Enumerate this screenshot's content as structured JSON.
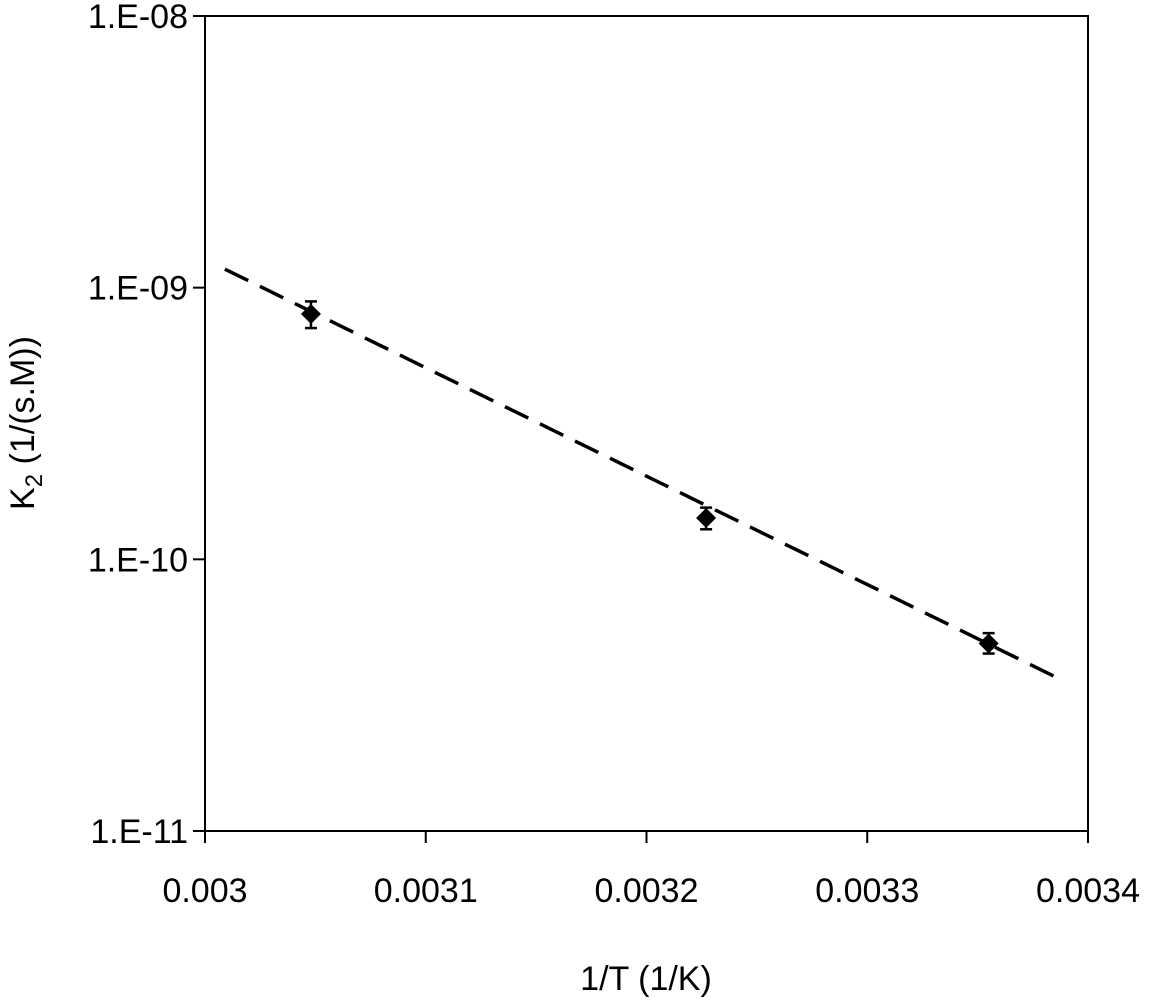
{
  "chart_data": {
    "type": "scatter",
    "scale": {
      "x": "linear",
      "y": "log"
    },
    "xlabel": "1/T (1/K)",
    "ylabel": {
      "base": "K",
      "subscript": "2",
      "rest": " (1/(s.M))"
    },
    "xlim": [
      0.003,
      0.0034
    ],
    "ylim": [
      1e-11,
      1e-08
    ],
    "x_ticks": [
      {
        "value": 0.003,
        "label": "0.003"
      },
      {
        "value": 0.0031,
        "label": "0.0031"
      },
      {
        "value": 0.0032,
        "label": "0.0032"
      },
      {
        "value": 0.0033,
        "label": "0.0033"
      },
      {
        "value": 0.0034,
        "label": "0.0034"
      }
    ],
    "y_ticks": [
      {
        "value": 1e-11,
        "label": "1.E-11"
      },
      {
        "value": 1e-10,
        "label": "1.E-10"
      },
      {
        "value": 1e-09,
        "label": "1.E-09"
      },
      {
        "value": 1e-08,
        "label": "1.E-08"
      }
    ],
    "grid": false,
    "legend": "none",
    "series": [
      {
        "marker": "diamond",
        "color": "#000000",
        "points": [
          {
            "x": 0.003048,
            "y": 8e-10,
            "y_err_low": 7.1e-10,
            "y_err_high": 8.9e-10
          },
          {
            "x": 0.003227,
            "y": 1.42e-10,
            "y_err_low": 1.29e-10,
            "y_err_high": 1.55e-10
          },
          {
            "x": 0.003355,
            "y": 4.9e-11,
            "y_err_low": 4.5e-11,
            "y_err_high": 5.35e-11
          }
        ]
      }
    ],
    "trendline": {
      "style": "dashed",
      "color": "#000000",
      "from": {
        "x": 0.003009,
        "y": 1.17e-09
      },
      "to": {
        "x": 0.003385,
        "y": 3.7e-11
      }
    }
  }
}
